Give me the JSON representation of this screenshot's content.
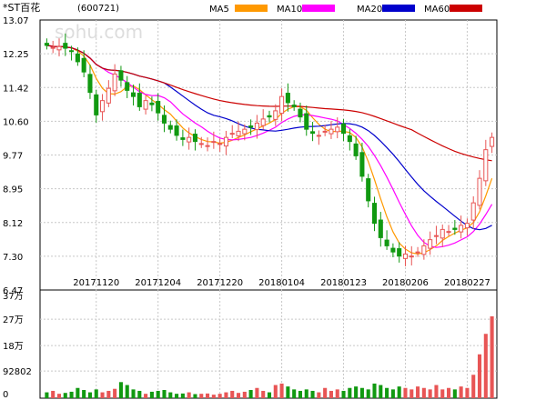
{
  "chart_data": {
    "type": "candlestick",
    "stock": {
      "name": "*ST百花",
      "code": "(600721)"
    },
    "watermark": "sohu.com",
    "legend": [
      {
        "name": "MA5",
        "color": "#ff9900"
      },
      {
        "name": "MA10",
        "color": "#ff00ff"
      },
      {
        "name": "MA20",
        "color": "#0000cc"
      },
      {
        "name": "MA60",
        "color": "#cc0000"
      }
    ],
    "price_axis": {
      "ticks": [
        "13.07",
        "12.25",
        "11.42",
        "10.60",
        "9.77",
        "8.95",
        "8.12",
        "7.30",
        "6.47"
      ],
      "min": 6.47,
      "max": 13.07
    },
    "volume_axis": {
      "ticks": [
        "37万",
        "27万",
        "18万",
        "92802",
        "0"
      ],
      "values": [
        37,
        27,
        18,
        9.28,
        0
      ],
      "max": 37
    },
    "date_labels": [
      "20171120",
      "20171204",
      "20171220",
      "20180104",
      "20180123",
      "20180206",
      "20180227"
    ],
    "date_label_index": [
      8,
      18,
      28,
      38,
      48,
      58,
      68
    ],
    "up_color": "#e85555",
    "down_color": "#119911",
    "closes": [
      12.45,
      12.4,
      12.42,
      12.38,
      12.3,
      12.05,
      11.8,
      11.3,
      10.75,
      11.1,
      11.4,
      11.75,
      11.6,
      11.35,
      11.2,
      10.95,
      11.1,
      11.0,
      10.8,
      10.55,
      10.4,
      10.25,
      10.15,
      10.2,
      10.1,
      10.05,
      10.0,
      10.1,
      10.05,
      10.2,
      10.3,
      10.35,
      10.4,
      10.45,
      10.55,
      10.65,
      10.7,
      10.85,
      11.2,
      11.05,
      10.95,
      10.7,
      10.4,
      10.3,
      10.25,
      10.35,
      10.4,
      10.45,
      10.3,
      10.1,
      9.75,
      9.25,
      8.65,
      8.1,
      7.75,
      7.55,
      7.4,
      7.3,
      7.35,
      7.3,
      7.4,
      7.55,
      7.7,
      7.8,
      7.95,
      7.9,
      7.95,
      8.05,
      8.1,
      8.6,
      9.2,
      9.9,
      10.2
    ],
    "volumes": [
      2.0,
      2.5,
      1.5,
      1.8,
      2.2,
      3.5,
      2.8,
      2.0,
      3.0,
      2.0,
      2.5,
      3.2,
      5.5,
      4.5,
      3.0,
      2.5,
      1.5,
      2.2,
      2.5,
      2.8,
      2.0,
      1.5,
      1.6,
      2.0,
      1.4,
      1.5,
      1.6,
      1.2,
      1.5,
      2.0,
      2.5,
      1.8,
      2.2,
      2.8,
      3.5,
      2.5,
      2.0,
      4.5,
      5.0,
      4.0,
      3.0,
      2.5,
      3.0,
      2.5,
      2.0,
      3.5,
      2.5,
      3.0,
      2.5,
      3.5,
      4.0,
      3.5,
      3.0,
      5.0,
      4.5,
      3.5,
      3.0,
      4.0,
      3.5,
      3.0,
      4.0,
      3.5,
      3.0,
      4.5,
      3.0,
      3.5,
      3.0,
      4.0,
      3.5,
      8.0,
      15.0,
      22.0,
      28.0
    ],
    "ma5_end": 9.35,
    "ma10_end": 8.65,
    "ma20_end": 8.12,
    "ma60_end": 9.42
  }
}
